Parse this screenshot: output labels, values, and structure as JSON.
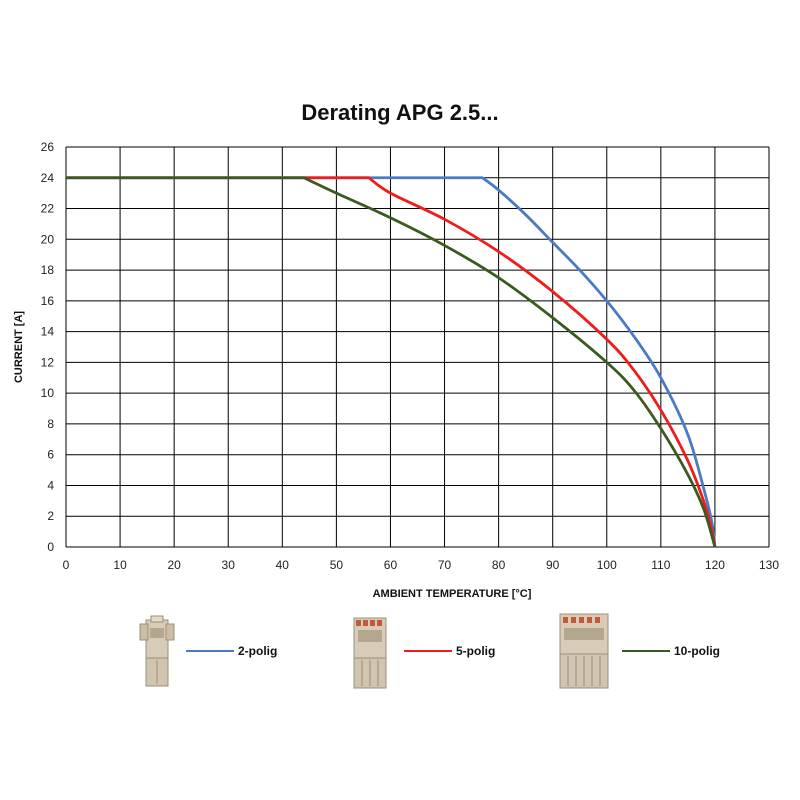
{
  "chart_data": {
    "type": "line",
    "title": "Derating APG 2.5...",
    "xlabel": "AMBIENT TEMPERATURE [°C]",
    "ylabel": "CURRENT [A]",
    "xlim": [
      0,
      130
    ],
    "ylim": [
      0,
      26
    ],
    "xticks": [
      0,
      10,
      20,
      30,
      40,
      50,
      60,
      70,
      80,
      90,
      100,
      110,
      120,
      130
    ],
    "yticks": [
      0,
      2,
      4,
      6,
      8,
      10,
      12,
      14,
      16,
      18,
      20,
      22,
      24,
      26
    ],
    "grid": true,
    "legend": "bottom",
    "series": [
      {
        "name": "2-polig",
        "color": "#4a7ac4",
        "x": [
          0,
          77,
          80,
          85,
          90,
          95,
          100,
          105,
          110,
          115,
          118,
          119.5,
          120
        ],
        "y": [
          24,
          24,
          23.2,
          21.6,
          19.8,
          18.0,
          16.0,
          13.7,
          11.0,
          7.3,
          3.7,
          1.5,
          0
        ]
      },
      {
        "name": "5-polig",
        "color": "#ee1c1c",
        "x": [
          0,
          56,
          60,
          70,
          80,
          90,
          100,
          105,
          110,
          115,
          118,
          119.5,
          120
        ],
        "y": [
          24,
          24,
          23.0,
          21.3,
          19.2,
          16.6,
          13.5,
          11.5,
          8.9,
          5.6,
          2.9,
          1.0,
          0
        ]
      },
      {
        "name": "10-polig",
        "color": "#3a5a1e",
        "x": [
          0,
          44,
          50,
          60,
          70,
          80,
          90,
          100,
          105,
          110,
          115,
          118,
          120
        ],
        "y": [
          24,
          24,
          23.0,
          21.4,
          19.6,
          17.5,
          14.9,
          12.0,
          10.2,
          7.7,
          4.7,
          2.4,
          0
        ]
      }
    ]
  },
  "legend": {
    "icons": [
      "connector-2-pole-icon",
      "connector-5-pole-icon",
      "connector-10-pole-icon"
    ]
  }
}
